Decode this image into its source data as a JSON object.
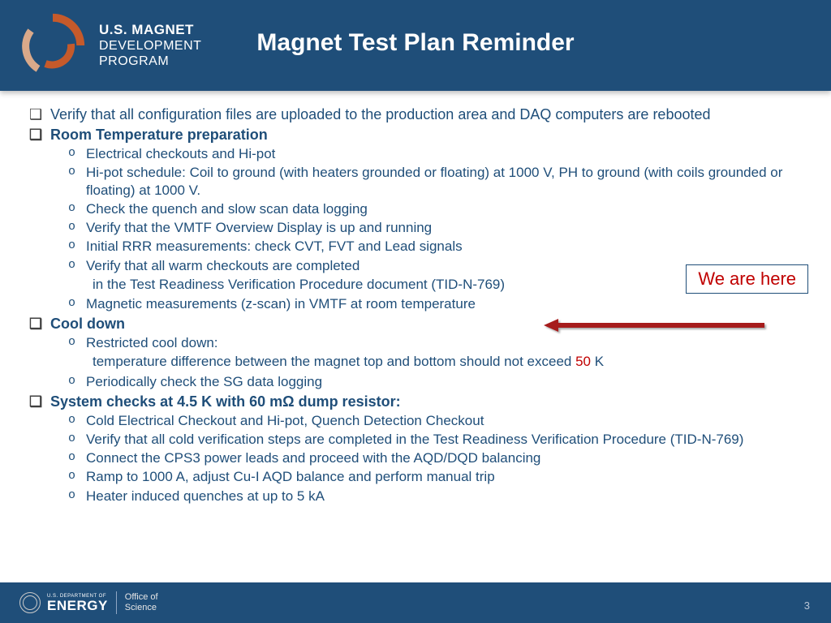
{
  "header": {
    "program_l1": "U.S. MAGNET",
    "program_l2": "DEVELOPMENT",
    "program_l3": "PROGRAM",
    "slide_title": "Magnet Test Plan Reminder",
    "logo_colors": {
      "inner_arc": "#c55a2b",
      "mid_arc": "#d9a98a",
      "outer_arc": "#c55a2b",
      "header_bg": "#1f4e79"
    }
  },
  "content": {
    "text_color": "#1f4e79",
    "highlight_color": "#c00000",
    "items": [
      {
        "text": "Verify that all configuration files are uploaded to the production area and DAQ computers are rebooted"
      },
      {
        "text": "Room Temperature preparation",
        "bold": true,
        "sub": [
          "Electrical checkouts and Hi-pot",
          "Hi-pot schedule: Coil to ground (with heaters grounded or floating) at 1000 V, PH to ground (with coils grounded or floating) at 1000 V.",
          "Check the quench and slow scan data logging",
          "Verify that the VMTF Overview Display is up and running",
          "Initial RRR measurements: check CVT, FVT and Lead signals",
          "Verify that all warm checkouts are completed"
        ],
        "indent_after_sub": " in the Test Readiness Verification Procedure document (TID-N-769)",
        "sub_after": [
          "Magnetic measurements (z-scan) in VMTF at room temperature"
        ]
      },
      {
        "text": "Cool down",
        "bold": true,
        "sub": [
          "Restricted cool down:"
        ],
        "indent_after_sub_rich": {
          "pre": "temperature difference between the magnet top and bottom should not exceed ",
          "red": "50",
          "post": " K"
        },
        "sub_after": [
          "Periodically check the SG data logging"
        ]
      },
      {
        "text": "System checks at 4.5 K with 60 mΩ dump resistor:",
        "bold": true,
        "sub": [
          "Cold Electrical Checkout and Hi-pot, Quench Detection Checkout",
          "Verify that all cold verification steps are completed in the Test Readiness Verification Procedure (TID-N-769)",
          "Connect the CPS3 power leads and proceed with the AQD/DQD balancing",
          "Ramp to 1000 A, adjust Cu-I AQD balance and perform manual trip",
          "Heater induced quenches at up to 5 kA"
        ]
      }
    ]
  },
  "callout": {
    "label": "We are here",
    "border_color": "#1f4e79",
    "text_color": "#c00000",
    "arrow_color": "#a61c1c"
  },
  "footer": {
    "dept": "U.S. DEPARTMENT OF",
    "energy": "ENERGY",
    "office_l1": "Office of",
    "office_l2": "Science",
    "page_number": "3",
    "bg": "#1f4e79"
  }
}
